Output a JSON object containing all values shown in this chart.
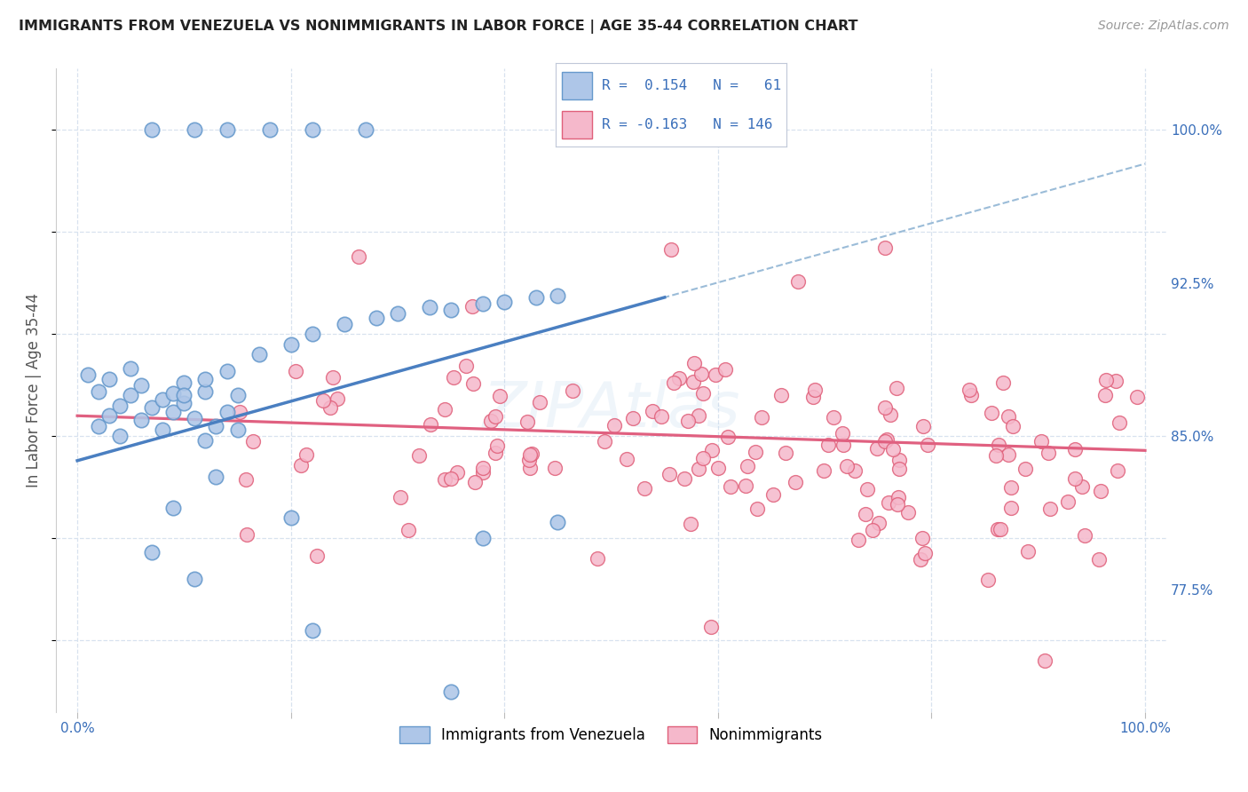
{
  "title": "IMMIGRANTS FROM VENEZUELA VS NONIMMIGRANTS IN LABOR FORCE | AGE 35-44 CORRELATION CHART",
  "source": "Source: ZipAtlas.com",
  "ylabel": "In Labor Force | Age 35-44",
  "xlim": [
    -0.02,
    1.02
  ],
  "ylim": [
    0.715,
    1.03
  ],
  "x_ticks": [
    0.0,
    0.2,
    0.4,
    0.6,
    0.8,
    1.0
  ],
  "x_tick_labels": [
    "0.0%",
    "",
    "",
    "",
    "",
    "100.0%"
  ],
  "y_tick_labels_right": [
    "100.0%",
    "92.5%",
    "85.0%",
    "77.5%"
  ],
  "y_tick_values_right": [
    1.0,
    0.925,
    0.85,
    0.775
  ],
  "color_blue": "#aec6e8",
  "color_pink": "#f5b8cb",
  "color_blue_edge": "#6699cc",
  "color_pink_edge": "#e0607a",
  "color_blue_line": "#4a7fc1",
  "color_pink_line": "#e06080",
  "color_dashed_line": "#9bbcd8",
  "color_blue_text": "#3a6fba",
  "background_color": "#ffffff",
  "grid_color": "#d8e2ef",
  "blue_line_x0": 0.0,
  "blue_line_y0": 0.838,
  "blue_line_x1": 0.55,
  "blue_line_y1": 0.918,
  "pink_line_x0": 0.0,
  "pink_line_y0": 0.86,
  "pink_line_x1": 1.0,
  "pink_line_y1": 0.843,
  "legend_text1": "R =  0.154   N =   61",
  "legend_text2": "R = -0.163   N = 146",
  "watermark": "ZIPAtlas"
}
